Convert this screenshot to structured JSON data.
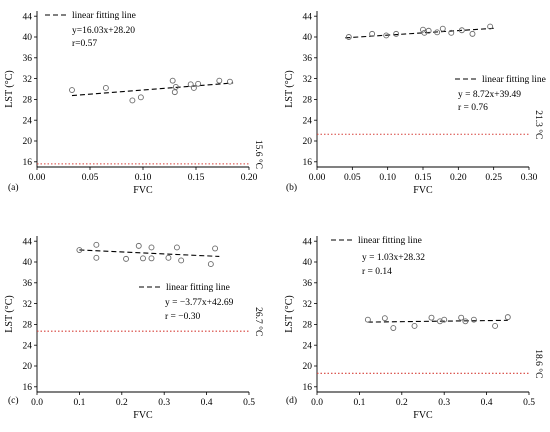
{
  "chart_data": [
    {
      "type": "scatter",
      "panel_label": "(a)",
      "xlabel": "FVC",
      "ylabel": "LST (°C)",
      "xlim": [
        0,
        0.2
      ],
      "ylim": [
        15,
        45
      ],
      "xticks": [
        "0.00",
        "0.05",
        "0.10",
        "0.15",
        "0.20"
      ],
      "yticks": [
        "16",
        "20",
        "24",
        "28",
        "32",
        "36",
        "40",
        "44"
      ],
      "legend": {
        "label": "linear fitting line",
        "placement": "top-left"
      },
      "points": {
        "x": [
          0.033,
          0.065,
          0.09,
          0.098,
          0.128,
          0.13,
          0.131,
          0.145,
          0.148,
          0.152,
          0.172,
          0.182
        ],
        "y": [
          29.8,
          30.2,
          27.8,
          28.4,
          31.6,
          29.4,
          30.4,
          30.9,
          30.2,
          31.0,
          31.6,
          31.4
        ]
      },
      "fit": {
        "equation": "y=16.03x+28.20",
        "r": "r=0.57",
        "slope": 16.03,
        "intercept": 28.2,
        "x_range": [
          0.033,
          0.185
        ]
      },
      "reference": {
        "value": 15.6,
        "label": "15.6 °C"
      }
    },
    {
      "type": "scatter",
      "panel_label": "(b)",
      "xlabel": "FVC",
      "ylabel": "LST (°C)",
      "xlim": [
        0,
        0.3
      ],
      "ylim": [
        15,
        45
      ],
      "xticks": [
        "0.00",
        "0.05",
        "0.10",
        "0.15",
        "0.20",
        "0.25",
        "0.30"
      ],
      "yticks": [
        "16",
        "20",
        "24",
        "28",
        "32",
        "36",
        "40",
        "44"
      ],
      "legend": {
        "label": "linear fitting line",
        "placement": "middle-right"
      },
      "points": {
        "x": [
          0.045,
          0.078,
          0.098,
          0.112,
          0.15,
          0.152,
          0.158,
          0.17,
          0.178,
          0.19,
          0.205,
          0.22,
          0.245
        ],
        "y": [
          40.0,
          40.6,
          40.3,
          40.6,
          41.4,
          40.8,
          41.2,
          40.9,
          41.6,
          40.8,
          41.3,
          40.6,
          42.0
        ]
      },
      "fit": {
        "equation": "y = 8.72x+39.49",
        "r": "r = 0.76",
        "slope": 8.72,
        "intercept": 39.49,
        "x_range": [
          0.04,
          0.25
        ]
      },
      "reference": {
        "value": 21.3,
        "label": "21.3 °C"
      }
    },
    {
      "type": "scatter",
      "panel_label": "(c)",
      "xlabel": "FVC",
      "ylabel": "LST (°C)",
      "xlim": [
        0,
        0.5
      ],
      "ylim": [
        15,
        45
      ],
      "xticks": [
        "0.0",
        "0.1",
        "0.2",
        "0.3",
        "0.4",
        "0.5"
      ],
      "yticks": [
        "16",
        "20",
        "24",
        "28",
        "32",
        "36",
        "40",
        "44"
      ],
      "legend": {
        "label": "linear fitting line",
        "placement": "middle-right"
      },
      "points": {
        "x": [
          0.1,
          0.14,
          0.14,
          0.21,
          0.24,
          0.25,
          0.27,
          0.27,
          0.31,
          0.33,
          0.34,
          0.41,
          0.42
        ],
        "y": [
          42.3,
          43.3,
          40.8,
          40.6,
          43.1,
          40.7,
          42.8,
          40.7,
          40.8,
          42.8,
          40.3,
          39.6,
          42.6
        ]
      },
      "fit": {
        "equation": "y = −3.77x+42.69",
        "r": "r = −0.30",
        "slope": -3.77,
        "intercept": 42.69,
        "x_range": [
          0.1,
          0.43
        ]
      },
      "reference": {
        "value": 26.7,
        "label": "26.7 °C"
      }
    },
    {
      "type": "scatter",
      "panel_label": "(d)",
      "xlabel": "FVC",
      "ylabel": "LST (°C)",
      "xlim": [
        0,
        0.5
      ],
      "ylim": [
        15,
        45
      ],
      "xticks": [
        "0.0",
        "0.1",
        "0.2",
        "0.3",
        "0.4",
        "0.5"
      ],
      "yticks": [
        "16",
        "20",
        "24",
        "28",
        "32",
        "36",
        "40",
        "44"
      ],
      "legend": {
        "label": "linear fitting line",
        "placement": "top-left"
      },
      "points": {
        "x": [
          0.12,
          0.16,
          0.18,
          0.23,
          0.27,
          0.29,
          0.3,
          0.34,
          0.35,
          0.37,
          0.42,
          0.45
        ],
        "y": [
          28.9,
          29.2,
          27.3,
          27.7,
          29.3,
          28.6,
          28.9,
          29.3,
          28.6,
          28.9,
          27.7,
          29.4
        ]
      },
      "fit": {
        "equation": "y = 1.03x+28.32",
        "r": "r = 0.14",
        "slope": 1.03,
        "intercept": 28.32,
        "x_range": [
          0.12,
          0.45
        ]
      },
      "reference": {
        "value": 18.6,
        "label": "18.6 °C"
      }
    }
  ]
}
